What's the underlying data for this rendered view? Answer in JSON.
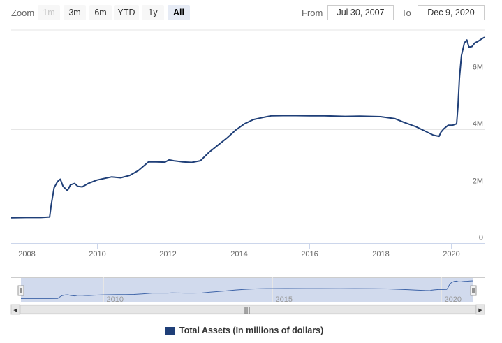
{
  "toolbar": {
    "zoom_label": "Zoom",
    "buttons": [
      {
        "label": "1m",
        "state": "disabled"
      },
      {
        "label": "3m",
        "state": "normal"
      },
      {
        "label": "6m",
        "state": "normal"
      },
      {
        "label": "YTD",
        "state": "normal"
      },
      {
        "label": "1y",
        "state": "normal"
      },
      {
        "label": "All",
        "state": "active"
      }
    ],
    "from_label": "From",
    "from_value": "Jul 30, 2007",
    "to_label": "To",
    "to_value": "Dec 9, 2020"
  },
  "chart_data": {
    "type": "line",
    "x_axis_type": "date",
    "xlim": [
      "2007-07-30",
      "2020-12-09"
    ],
    "ylim": [
      0,
      7500000
    ],
    "x_ticks": [
      "2008",
      "2010",
      "2012",
      "2014",
      "2016",
      "2018",
      "2020"
    ],
    "y_ticks": [
      {
        "value": 0,
        "label": "0"
      },
      {
        "value": 2000000,
        "label": "2M"
      },
      {
        "value": 4000000,
        "label": "4M"
      },
      {
        "value": 6000000,
        "label": "6M"
      }
    ],
    "grid": "horizontal",
    "legend_position": "bottom-center",
    "color": "#1f3f78",
    "series": [
      {
        "name": "Total Assets (In millions of dollars)",
        "x": [
          "2007-07-30",
          "2008-01-01",
          "2008-06-01",
          "2008-08-30",
          "2008-09-15",
          "2008-10-15",
          "2008-11-20",
          "2008-12-18",
          "2009-01-15",
          "2009-03-01",
          "2009-04-01",
          "2009-05-15",
          "2009-06-15",
          "2009-08-01",
          "2009-10-01",
          "2010-01-01",
          "2010-06-01",
          "2010-09-01",
          "2010-12-01",
          "2011-03-01",
          "2011-06-15",
          "2011-09-01",
          "2011-12-01",
          "2012-01-15",
          "2012-03-01",
          "2012-06-01",
          "2012-09-01",
          "2012-12-01",
          "2013-03-01",
          "2013-06-01",
          "2013-09-01",
          "2013-12-01",
          "2014-03-01",
          "2014-06-01",
          "2014-09-01",
          "2014-12-01",
          "2015-06-01",
          "2016-01-01",
          "2016-06-01",
          "2017-01-01",
          "2017-06-01",
          "2018-01-01",
          "2018-06-01",
          "2018-09-01",
          "2019-01-01",
          "2019-04-01",
          "2019-07-01",
          "2019-08-28",
          "2019-09-15",
          "2019-10-15",
          "2019-12-01",
          "2020-01-15",
          "2020-02-25",
          "2020-03-10",
          "2020-03-25",
          "2020-04-15",
          "2020-05-15",
          "2020-06-10",
          "2020-07-01",
          "2020-08-01",
          "2020-09-01",
          "2020-10-01",
          "2020-11-01",
          "2020-12-09"
        ],
        "y": [
          890000,
          900000,
          900000,
          920000,
          1350000,
          1950000,
          2170000,
          2250000,
          2000000,
          1850000,
          2050000,
          2100000,
          2000000,
          1980000,
          2100000,
          2220000,
          2330000,
          2300000,
          2380000,
          2550000,
          2860000,
          2860000,
          2850000,
          2930000,
          2900000,
          2860000,
          2840000,
          2900000,
          3200000,
          3450000,
          3700000,
          3980000,
          4200000,
          4350000,
          4420000,
          4480000,
          4490000,
          4480000,
          4480000,
          4460000,
          4470000,
          4450000,
          4380000,
          4250000,
          4100000,
          3950000,
          3800000,
          3760000,
          3900000,
          4020000,
          4150000,
          4150000,
          4200000,
          4800000,
          5800000,
          6600000,
          7050000,
          7150000,
          6900000,
          6920000,
          7050000,
          7100000,
          7170000,
          7250000
        ]
      }
    ]
  },
  "navigator": {
    "tick_labels": [
      "2010",
      "2015",
      "2020"
    ],
    "range": [
      "2007-07-30",
      "2020-12-09"
    ],
    "scroll_left_arrow": "◀",
    "scroll_right_arrow": "▶",
    "scroll_grip": "|||"
  },
  "legend": {
    "label": "Total Assets (In millions of dollars)",
    "color": "#1f3f78"
  }
}
